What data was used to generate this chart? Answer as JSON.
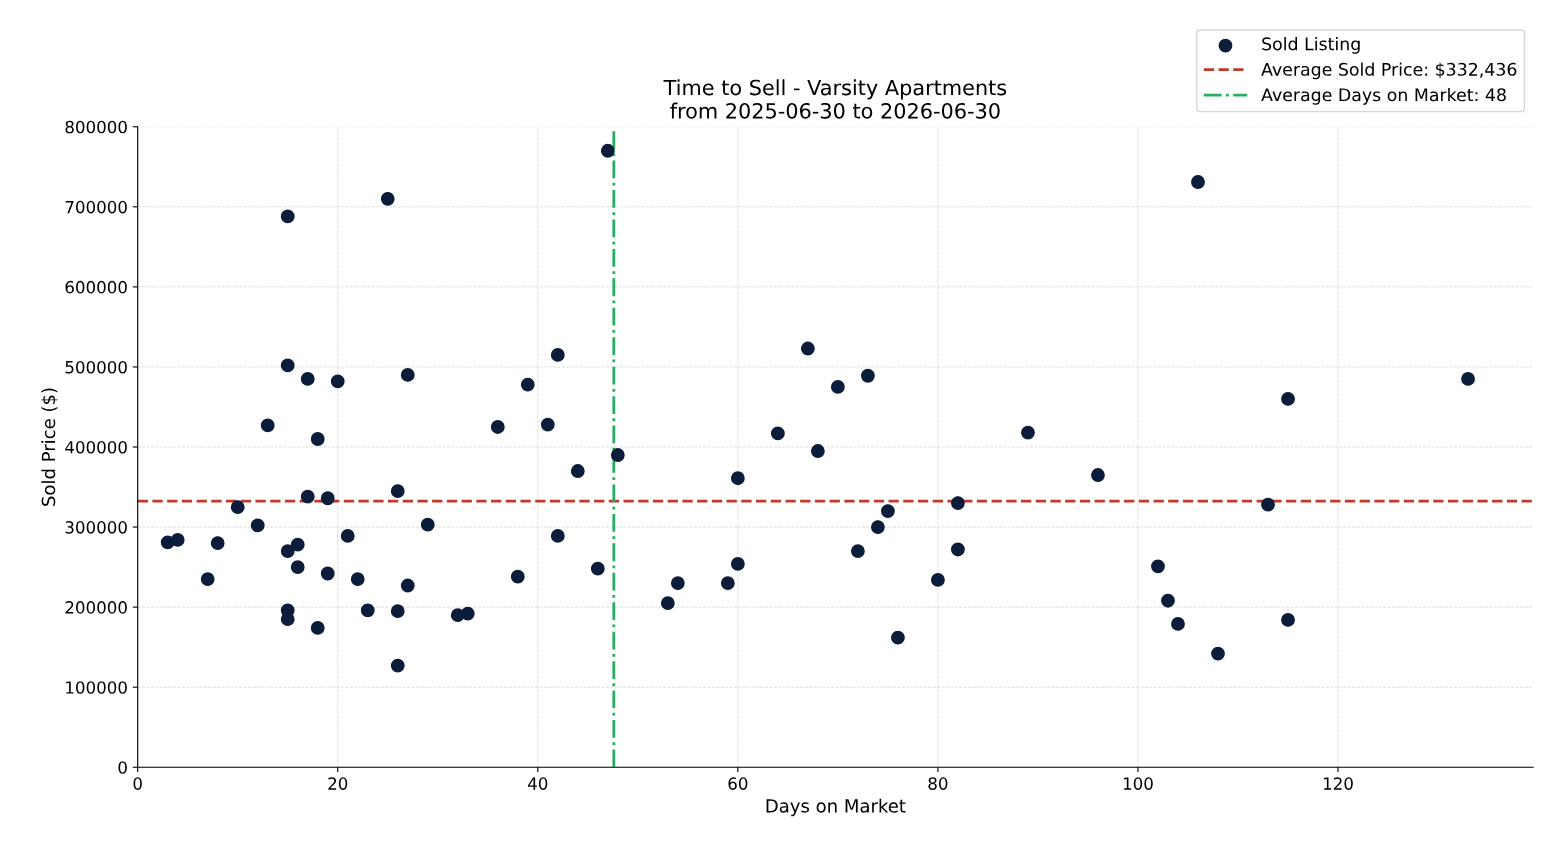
{
  "chart_data": {
    "type": "scatter",
    "title": "Time to Sell - Varsity Apartments\nfrom 2025-06-30 to 2026-06-30",
    "xlabel": "Days on Market",
    "ylabel": "Sold Price ($)",
    "xlim": [
      0,
      139.5
    ],
    "xticks": [
      0,
      20,
      40,
      60,
      80,
      100,
      120
    ],
    "ylim": [
      0,
      800000
    ],
    "yticks": [
      0,
      100000,
      200000,
      300000,
      400000,
      500000,
      600000,
      700000,
      800000
    ],
    "grid": true,
    "legend": "top right",
    "marker": "circle",
    "series": [
      {
        "name": "Sold Listing",
        "color": "#0b1d3a",
        "x": [
          3,
          4,
          7,
          8,
          10,
          12,
          13,
          15,
          15,
          15,
          15,
          15,
          16,
          16,
          17,
          17,
          18,
          18,
          19,
          19,
          20,
          21,
          22,
          23,
          25,
          26,
          26,
          26,
          27,
          27,
          29,
          32,
          33,
          36,
          38,
          39,
          41,
          42,
          42,
          44,
          46,
          47,
          48,
          53,
          54,
          59,
          60,
          60,
          64,
          67,
          68,
          70,
          72,
          73,
          74,
          75,
          76,
          80,
          82,
          82,
          89,
          96,
          102,
          103,
          104,
          106,
          108,
          113,
          115,
          115,
          133
        ],
        "values": [
          281000,
          284000,
          235000,
          280000,
          325000,
          302000,
          427000,
          688000,
          502000,
          270000,
          196000,
          185000,
          278000,
          250000,
          485000,
          338000,
          410000,
          174000,
          336000,
          242000,
          482000,
          289000,
          235000,
          196000,
          710000,
          345000,
          195000,
          127000,
          490000,
          227000,
          303000,
          190000,
          192000,
          425000,
          238000,
          478000,
          428000,
          515000,
          289000,
          370000,
          248000,
          770000,
          390000,
          205000,
          230000,
          230000,
          361000,
          254000,
          417000,
          523000,
          395000,
          475000,
          270000,
          489000,
          300000,
          320000,
          162000,
          234000,
          330000,
          272000,
          418000,
          365000,
          251000,
          208000,
          179000,
          731000,
          142000,
          328000,
          460000,
          184000,
          485000
        ]
      }
    ],
    "ref_lines": [
      {
        "axis": "y",
        "value": 332436,
        "label": "Average Sold Price: $332,436",
        "color": "#c0392b",
        "line_style": "dashed"
      },
      {
        "axis": "x",
        "value": 47.6,
        "label": "Average Days on Market: 48",
        "color": "#27ae60",
        "line_style": "dashdot"
      }
    ]
  }
}
